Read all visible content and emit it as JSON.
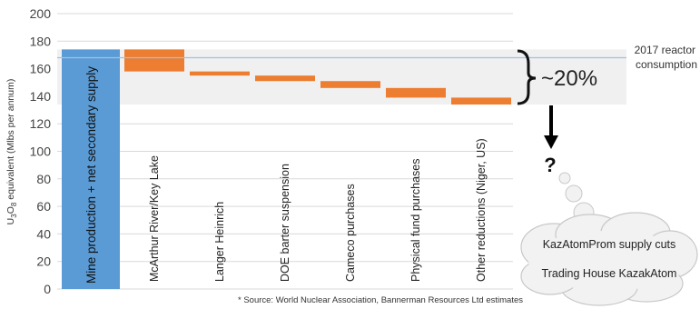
{
  "chart_data": {
    "type": "waterfall",
    "y_axis": {
      "label_parts": [
        "U",
        "3",
        "O",
        "8",
        " equivalent (Mlbs per annum)"
      ],
      "ylim": [
        0,
        200
      ],
      "ticks": [
        "0",
        "20",
        "40",
        "60",
        "80",
        "100",
        "120",
        "140",
        "160",
        "180",
        "200"
      ],
      "grid": true
    },
    "total_bar": {
      "label": "Mine production + net secondary supply",
      "value": 174,
      "color": "#5b9bd5"
    },
    "steps": [
      {
        "label": "McArthur River/Key Lake",
        "top": 174,
        "bottom": 158
      },
      {
        "label": "Langer Heinrich",
        "top": 158,
        "bottom": 155
      },
      {
        "label": "DOE barter suspension",
        "top": 155,
        "bottom": 151
      },
      {
        "label": "Cameco purchases",
        "top": 151,
        "bottom": 146
      },
      {
        "label": "Physical fund purchases",
        "top": 146,
        "bottom": 139
      },
      {
        "label": "Other reductions (Niger, US)",
        "top": 139,
        "bottom": 134
      }
    ],
    "step_color": "#ed7d31",
    "shaded_band": {
      "from": 134,
      "to": 174
    },
    "reference_line": {
      "value": 168,
      "label_lines": [
        "2017 reactor",
        "consumption"
      ]
    },
    "annotation": "~20%",
    "question_mark": "?",
    "cloud_items": [
      "KazAtomProm supply cuts",
      "Trading House KazakAtom"
    ],
    "source_note": "* Source: World Nuclear Association, Bannerman Resources Ltd estimates"
  }
}
